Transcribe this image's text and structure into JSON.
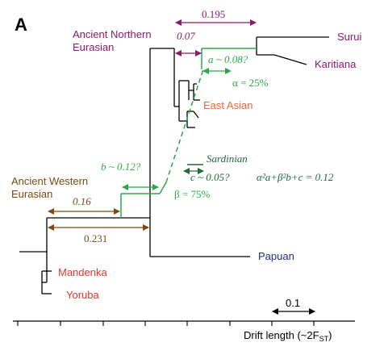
{
  "panel_label": "A",
  "colors": {
    "tree": "#000000",
    "purple": "#8B1A6B",
    "green": "#2BA84A",
    "dark_green": "#1E6B3A",
    "brown": "#7A4A12",
    "red": "#E8342A",
    "orange": "#E8673A",
    "navy": "#1F2F7A"
  },
  "taxa": {
    "surui": "Surui",
    "karitiana": "Karitiana",
    "east_asian": "East Asian",
    "sardinian": "Sardinian",
    "papuan": "Papuan",
    "mandenka": "Mandenka",
    "yoruba": "Yoruba"
  },
  "ancestral": {
    "north_line1": "Ancient Northern",
    "north_line2": "Eurasian",
    "west_line1": "Ancient Western",
    "west_line2": "Eurasian"
  },
  "annotations": {
    "d_0195": "0.195",
    "d_007": "0.07",
    "a": "a ~ 0.08?",
    "alpha": "α = 25%",
    "b": "b ~ 0.12?",
    "c": "c ~ 0.05?",
    "beta": "β = 75%",
    "equation": "α²a+β²b+c = 0.12",
    "d_016": "0.16",
    "d_0231": "0.231"
  },
  "scale_bar": {
    "label": "0.1"
  },
  "axis": {
    "label": "Drift length (~2F",
    "label_sub": "ST",
    "label_end": ")"
  }
}
